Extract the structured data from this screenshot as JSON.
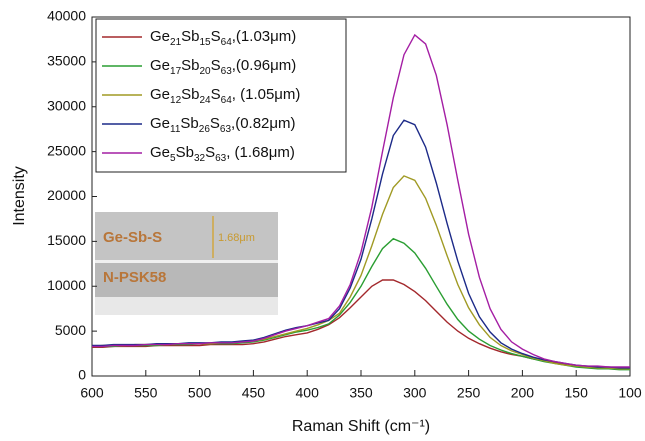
{
  "chart_data": {
    "type": "line",
    "xlabel": "Raman Shift (cm⁻¹)",
    "ylabel": "Intensity",
    "x": [
      600,
      590,
      580,
      570,
      560,
      550,
      540,
      530,
      520,
      510,
      500,
      490,
      480,
      470,
      460,
      450,
      440,
      430,
      420,
      410,
      400,
      390,
      380,
      370,
      360,
      350,
      340,
      330,
      320,
      310,
      300,
      290,
      280,
      270,
      260,
      250,
      240,
      230,
      220,
      210,
      200,
      190,
      180,
      170,
      160,
      150,
      140,
      130,
      120,
      110,
      100
    ],
    "xlim": [
      600,
      100
    ],
    "ylim": [
      0,
      40000
    ],
    "xticks": [
      600,
      550,
      500,
      450,
      400,
      350,
      300,
      250,
      200,
      150,
      100
    ],
    "yticks": [
      0,
      5000,
      10000,
      15000,
      20000,
      25000,
      30000,
      35000,
      40000
    ],
    "series": [
      {
        "name": "Ge21Sb15S64,(1.03μm)",
        "color": "#a3282c",
        "values": [
          3200,
          3200,
          3300,
          3300,
          3300,
          3300,
          3400,
          3400,
          3400,
          3400,
          3400,
          3500,
          3500,
          3500,
          3500,
          3600,
          3800,
          4100,
          4400,
          4600,
          4800,
          5200,
          5700,
          6500,
          7600,
          8800,
          10000,
          10700,
          10700,
          10200,
          9400,
          8400,
          7200,
          6000,
          5000,
          4200,
          3600,
          3100,
          2700,
          2400,
          2200,
          1900,
          1700,
          1500,
          1300,
          1100,
          1000,
          900,
          800,
          800,
          800
        ]
      },
      {
        "name": "Ge17Sb20S63,(0.96μm)",
        "color": "#2a9e32",
        "values": [
          3300,
          3300,
          3300,
          3400,
          3400,
          3400,
          3400,
          3500,
          3500,
          3500,
          3600,
          3600,
          3600,
          3600,
          3700,
          3800,
          4000,
          4300,
          4600,
          4900,
          5100,
          5400,
          5800,
          6800,
          8200,
          10000,
          12200,
          14200,
          15300,
          14800,
          13700,
          12000,
          10000,
          8000,
          6300,
          5000,
          4100,
          3400,
          2900,
          2500,
          2200,
          1900,
          1600,
          1400,
          1200,
          1000,
          900,
          800,
          800,
          700,
          700
        ]
      },
      {
        "name": "Ge12Sb24S64, (1.05μm)",
        "color": "#a09a24",
        "values": [
          3300,
          3400,
          3400,
          3400,
          3500,
          3500,
          3500,
          3500,
          3600,
          3600,
          3600,
          3600,
          3700,
          3700,
          3800,
          3900,
          4100,
          4400,
          4700,
          5000,
          5300,
          5700,
          6200,
          7000,
          8800,
          11200,
          14500,
          18000,
          21000,
          22300,
          21800,
          19800,
          16800,
          13400,
          10200,
          7600,
          5700,
          4300,
          3400,
          2800,
          2400,
          2000,
          1700,
          1400,
          1200,
          1100,
          1000,
          900,
          900,
          800,
          800
        ]
      },
      {
        "name": "Ge11Sb26S63,(0.82μm)",
        "color": "#1c2a88",
        "values": [
          3400,
          3400,
          3500,
          3500,
          3500,
          3500,
          3600,
          3600,
          3600,
          3700,
          3700,
          3700,
          3800,
          3800,
          3900,
          4000,
          4300,
          4700,
          5100,
          5400,
          5600,
          5900,
          6200,
          7500,
          9800,
          13000,
          17500,
          22500,
          26800,
          28500,
          28000,
          25500,
          21500,
          17000,
          12800,
          9200,
          6600,
          4900,
          3700,
          3000,
          2500,
          2100,
          1800,
          1600,
          1400,
          1200,
          1100,
          1000,
          1000,
          900,
          900
        ]
      },
      {
        "name": "Ge5Sb32S63, (1.68μm)",
        "color": "#a41ea4",
        "values": [
          3300,
          3300,
          3400,
          3400,
          3400,
          3500,
          3500,
          3500,
          3600,
          3600,
          3600,
          3700,
          3700,
          3700,
          3800,
          3900,
          4200,
          4600,
          5000,
          5300,
          5600,
          6000,
          6400,
          7800,
          10200,
          13800,
          18800,
          25000,
          31000,
          35800,
          38000,
          37000,
          33500,
          28000,
          21800,
          15800,
          11000,
          7500,
          5200,
          3800,
          3000,
          2400,
          1900,
          1600,
          1400,
          1200,
          1100,
          1100,
          1000,
          1000,
          1000
        ]
      }
    ],
    "inset": {
      "top_label": "Ge-Sb-S",
      "thickness": "1.68μm",
      "bottom_label": "N-PSK58"
    }
  }
}
